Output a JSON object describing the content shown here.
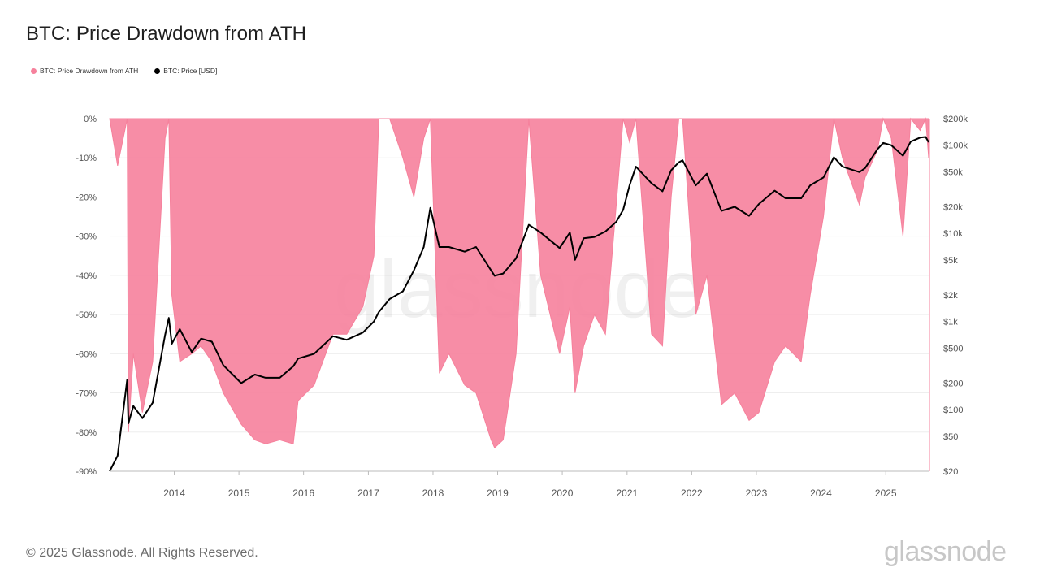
{
  "title": "BTC: Price Drawdown from ATH",
  "legend": [
    {
      "label": "BTC: Price Drawdown from ATH",
      "color": "#f6819c"
    },
    {
      "label": "BTC: Price [USD]",
      "color": "#000000"
    }
  ],
  "footer": "© 2025 Glassnode. All Rights Reserved.",
  "brand": "glassnode",
  "watermark": "glassnode",
  "chart_data": {
    "type": "area",
    "title": "BTC: Price Drawdown from ATH",
    "x_axis": {
      "type": "date",
      "range": [
        "2013-01-01",
        "2025-08-31"
      ],
      "tick_labels": [
        "2014",
        "2015",
        "2016",
        "2017",
        "2018",
        "2019",
        "2020",
        "2021",
        "2022",
        "2023",
        "2024",
        "2025"
      ]
    },
    "y_left": {
      "label": "",
      "range": [
        -90,
        0
      ],
      "unit": "%",
      "tick_labels": [
        "0%",
        "-10%",
        "-20%",
        "-30%",
        "-40%",
        "-50%",
        "-60%",
        "-70%",
        "-80%",
        "-90%"
      ]
    },
    "y_right": {
      "label": "",
      "scale": "log",
      "range": [
        20,
        200000
      ],
      "tick_values": [
        200000,
        100000,
        50000,
        20000,
        10000,
        5000,
        2000,
        1000,
        500,
        200,
        100,
        50,
        20
      ],
      "tick_labels": [
        "$200k",
        "$100k",
        "$50k",
        "$20k",
        "$10k",
        "$5k",
        "$2k",
        "$1k",
        "$500",
        "$200",
        "$100",
        "$50",
        "$20"
      ]
    },
    "grid": true,
    "legend_position": "top-left",
    "series": [
      {
        "name": "BTC: Price Drawdown from ATH",
        "axis": "left",
        "color": "#f6819c",
        "type": "area",
        "x": [
          "2013-01-01",
          "2013-02-15",
          "2013-04-10",
          "2013-04-17",
          "2013-05-15",
          "2013-07-05",
          "2013-09-01",
          "2013-11-10",
          "2013-12-01",
          "2013-12-18",
          "2014-02-01",
          "2014-04-10",
          "2014-06-01",
          "2014-08-01",
          "2014-10-05",
          "2015-01-14",
          "2015-04-01",
          "2015-06-01",
          "2015-08-20",
          "2015-11-04",
          "2015-12-01",
          "2016-03-01",
          "2016-06-15",
          "2016-09-01",
          "2016-12-01",
          "2017-02-01",
          "2017-03-01",
          "2017-05-01",
          "2017-07-15",
          "2017-09-15",
          "2017-11-10",
          "2017-12-17",
          "2018-02-06",
          "2018-04-01",
          "2018-06-29",
          "2018-09-01",
          "2018-11-25",
          "2018-12-15",
          "2019-02-01",
          "2019-04-15",
          "2019-06-26",
          "2019-09-01",
          "2019-12-17",
          "2020-02-13",
          "2020-03-13",
          "2020-05-01",
          "2020-07-01",
          "2020-09-01",
          "2020-11-01",
          "2020-12-10",
          "2021-01-15",
          "2021-02-20",
          "2021-05-19",
          "2021-07-20",
          "2021-09-07",
          "2021-10-20",
          "2021-11-10",
          "2022-01-24",
          "2022-03-28",
          "2022-06-18",
          "2022-09-01",
          "2022-11-21",
          "2023-01-15",
          "2023-04-14",
          "2023-06-15",
          "2023-09-11",
          "2023-11-01",
          "2024-01-15",
          "2024-03-14",
          "2024-05-01",
          "2024-08-05",
          "2024-09-06",
          "2024-11-15",
          "2024-12-17",
          "2025-02-01",
          "2025-04-08",
          "2025-05-22",
          "2025-07-14",
          "2025-08-14",
          "2025-08-31"
        ],
        "values": [
          0,
          -12,
          0,
          -80,
          -60,
          -75,
          -62,
          -5,
          0,
          -45,
          -62,
          -60,
          -58,
          -62,
          -70,
          -78,
          -82,
          -83,
          -82,
          -83,
          -72,
          -68,
          -55,
          -55,
          -48,
          -35,
          0,
          0,
          -10,
          -20,
          -5,
          0,
          -65,
          -60,
          -68,
          -70,
          -82,
          -84,
          -82,
          -60,
          0,
          -40,
          -60,
          -48,
          -70,
          -58,
          -50,
          -55,
          -22,
          0,
          -6,
          0,
          -55,
          -58,
          -20,
          0,
          0,
          -50,
          -40,
          -73,
          -70,
          -77,
          -75,
          -62,
          -58,
          -62,
          -45,
          -25,
          0,
          -10,
          -22,
          -15,
          -8,
          0,
          -5,
          -30,
          0,
          -3,
          0,
          -10
        ]
      },
      {
        "name": "BTC: Price [USD]",
        "axis": "right",
        "color": "#000000",
        "type": "line",
        "x": [
          "2013-01-01",
          "2013-02-15",
          "2013-04-10",
          "2013-04-17",
          "2013-05-15",
          "2013-07-05",
          "2013-09-01",
          "2013-11-10",
          "2013-12-01",
          "2013-12-18",
          "2014-02-01",
          "2014-04-10",
          "2014-06-01",
          "2014-08-01",
          "2014-10-05",
          "2015-01-14",
          "2015-04-01",
          "2015-06-01",
          "2015-08-20",
          "2015-11-04",
          "2015-12-01",
          "2016-03-01",
          "2016-06-15",
          "2016-09-01",
          "2016-12-01",
          "2017-02-01",
          "2017-03-01",
          "2017-05-01",
          "2017-07-15",
          "2017-09-15",
          "2017-11-10",
          "2017-12-17",
          "2018-02-06",
          "2018-04-01",
          "2018-06-29",
          "2018-09-01",
          "2018-11-25",
          "2018-12-15",
          "2019-02-01",
          "2019-04-15",
          "2019-06-26",
          "2019-09-01",
          "2019-12-17",
          "2020-02-13",
          "2020-03-13",
          "2020-05-01",
          "2020-07-01",
          "2020-09-01",
          "2020-11-01",
          "2020-12-10",
          "2021-01-15",
          "2021-02-20",
          "2021-05-19",
          "2021-07-20",
          "2021-09-07",
          "2021-10-20",
          "2021-11-10",
          "2022-01-24",
          "2022-03-28",
          "2022-06-18",
          "2022-09-01",
          "2022-11-21",
          "2023-01-15",
          "2023-04-14",
          "2023-06-15",
          "2023-09-11",
          "2023-11-01",
          "2024-01-15",
          "2024-03-14",
          "2024-05-01",
          "2024-08-05",
          "2024-09-06",
          "2024-11-15",
          "2024-12-17",
          "2025-02-01",
          "2025-04-08",
          "2025-05-22",
          "2025-07-14",
          "2025-08-14",
          "2025-08-31"
        ],
        "values": [
          20,
          30,
          220,
          70,
          110,
          80,
          120,
          700,
          1100,
          560,
          820,
          450,
          640,
          590,
          320,
          200,
          250,
          230,
          230,
          310,
          380,
          430,
          680,
          620,
          750,
          1000,
          1280,
          1800,
          2200,
          3800,
          7000,
          19500,
          7000,
          7000,
          6200,
          7000,
          3800,
          3300,
          3500,
          5200,
          12500,
          10200,
          6800,
          10200,
          5000,
          8800,
          9100,
          10500,
          13500,
          18500,
          35000,
          57000,
          37000,
          30000,
          52000,
          64000,
          67500,
          35000,
          47500,
          18000,
          20000,
          15800,
          21500,
          30500,
          25000,
          25000,
          35000,
          43000,
          73000,
          57000,
          49500,
          55000,
          90000,
          106000,
          100000,
          76000,
          110000,
          122000,
          124000,
          108000
        ]
      }
    ]
  }
}
